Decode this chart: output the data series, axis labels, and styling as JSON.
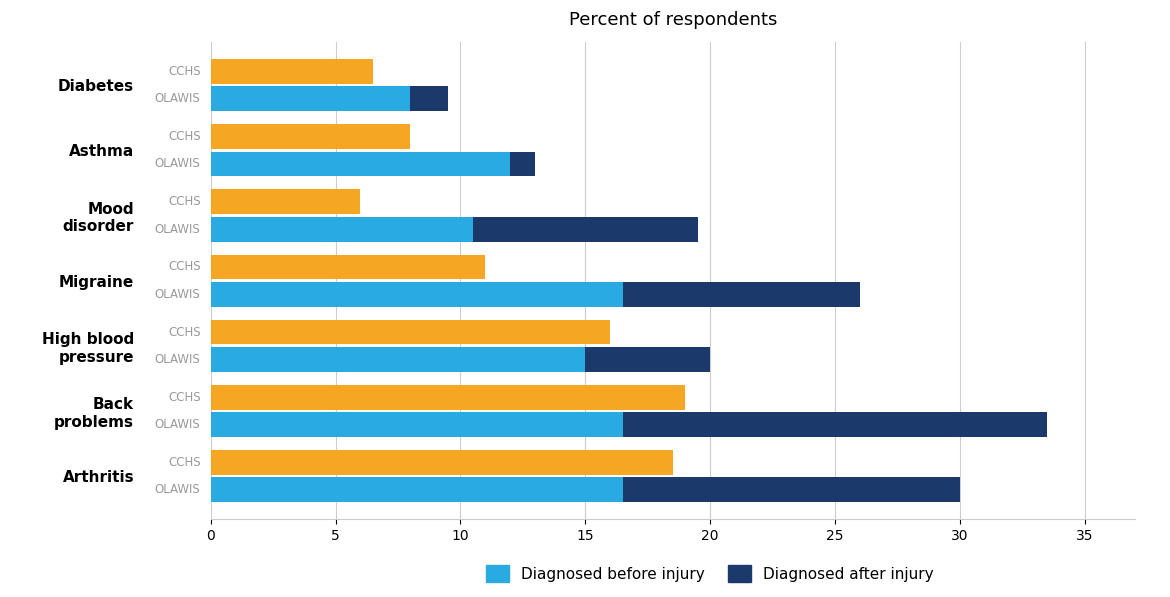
{
  "title": "Percent of respondents",
  "conditions": [
    "Diabetes",
    "Asthma",
    "Mood\ndisorder",
    "Migraine",
    "High blood\npressure",
    "Back\nproblems",
    "Arthritis"
  ],
  "cchs_values": [
    6.5,
    8.0,
    6.0,
    11.0,
    16.0,
    19.0,
    18.5
  ],
  "olawis_before": [
    8.0,
    12.0,
    10.5,
    16.5,
    15.0,
    16.5,
    16.5
  ],
  "olawis_after": [
    1.5,
    1.0,
    9.0,
    9.5,
    5.0,
    17.0,
    13.5
  ],
  "colors": {
    "cchs": "#F5A623",
    "olawis_before": "#29ABE2",
    "olawis_after": "#1B3A6B"
  },
  "xlim": [
    0,
    37
  ],
  "xticks": [
    0,
    5,
    10,
    15,
    20,
    25,
    30,
    35
  ],
  "legend_labels": [
    "Diagnosed before injury",
    "Diagnosed after injury"
  ],
  "background_color": "#FFFFFF",
  "label_color": "#999999",
  "condition_label_color": "#000000"
}
